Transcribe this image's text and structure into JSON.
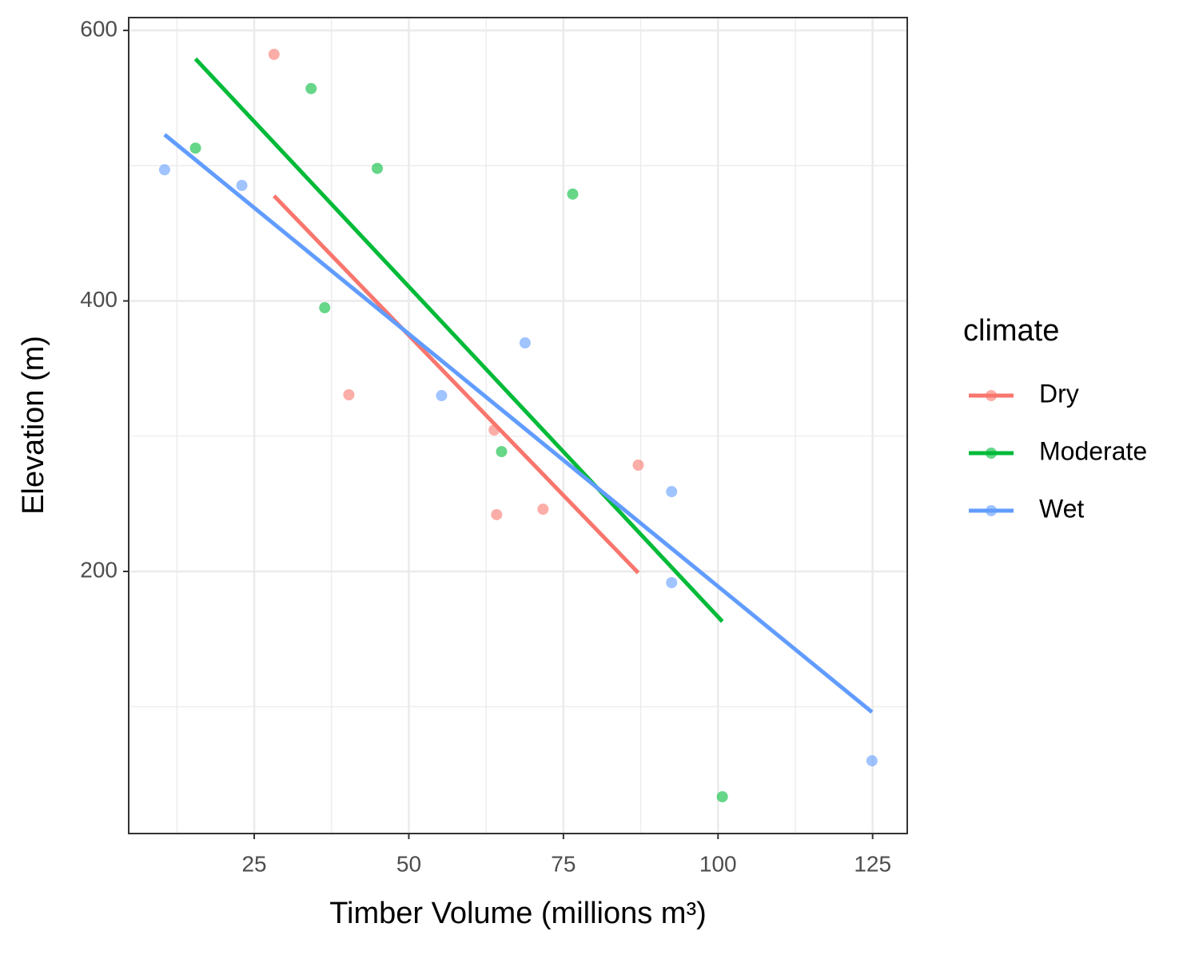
{
  "chart_data": {
    "type": "scatter",
    "x_label": "Timber Volume (millions m³)",
    "y_label": "Elevation (m)",
    "legend_title": "climate",
    "legend_position": "right",
    "xlim": [
      4.7,
      130.6
    ],
    "xticks": [
      25,
      50,
      75,
      100,
      125
    ],
    "xminor": [
      12.5,
      37.5,
      62.5,
      87.5,
      112.5
    ],
    "ylim": [
      6.2,
      609.5
    ],
    "yticks": [
      200,
      400,
      600
    ],
    "yminor": [
      100,
      300,
      500
    ],
    "grid": true,
    "series": [
      {
        "name": "Dry",
        "color": "#F8766D",
        "x": [
          28.2,
          40.3,
          63.8,
          64.2,
          71.7,
          87.1
        ],
        "values": [
          582.3,
          330.6,
          304.6,
          242,
          246,
          278.6
        ],
        "fit": {
          "x": [
            28.2,
            87.1
          ],
          "values": [
            477.7,
            199
          ]
        }
      },
      {
        "name": "Moderate",
        "color": "#00BA38",
        "x": [
          15.5,
          34.2,
          36.4,
          44.9,
          65.0,
          76.5,
          100.7
        ],
        "values": [
          513,
          557,
          395,
          498,
          288.6,
          479,
          33.4
        ],
        "fit": {
          "x": [
            15.5,
            100.7
          ],
          "values": [
            579,
            163
          ]
        }
      },
      {
        "name": "Wet",
        "color": "#619CFF",
        "x": [
          10.5,
          23.0,
          55.3,
          68.8,
          92.5,
          92.5,
          124.9
        ],
        "values": [
          497,
          485.4,
          330,
          369,
          259,
          191.7,
          60
        ],
        "fit": {
          "x": [
            10.5,
            124.9
          ],
          "values": [
            523,
            96
          ]
        }
      }
    ]
  }
}
